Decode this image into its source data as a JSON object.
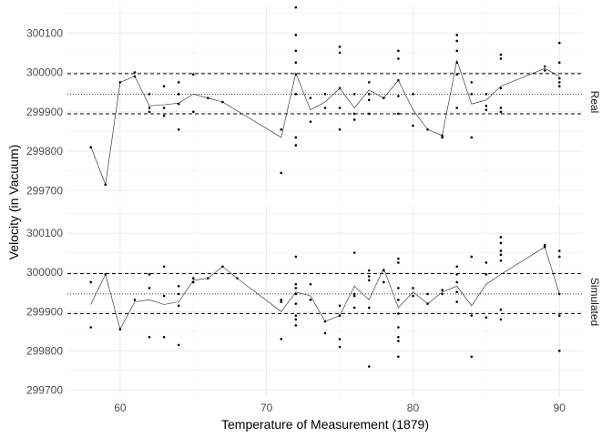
{
  "chart_data": {
    "type": "scatter",
    "xlabel": "Temperature of Measurement (1879)",
    "ylabel": "Velocity (in Vacuum)",
    "xlim": [
      56.4,
      91.6
    ],
    "ylim": [
      299680,
      300170
    ],
    "x_ticks": [
      60,
      70,
      80,
      90
    ],
    "y_ticks": [
      299700,
      299800,
      299900,
      300000,
      300100
    ],
    "grid": true,
    "reference_lines": {
      "dashed": [
        299895,
        299997
      ],
      "dotted": 299945
    },
    "panels": [
      {
        "name": "Real",
        "points": [
          {
            "x": 58,
            "y": 299810
          },
          {
            "x": 59,
            "y": 299715
          },
          {
            "x": 60,
            "y": 299975
          },
          {
            "x": 61,
            "y": 300000
          },
          {
            "x": 61,
            "y": 299990
          },
          {
            "x": 62,
            "y": 299945
          },
          {
            "x": 62,
            "y": 299900
          },
          {
            "x": 62,
            "y": 299910
          },
          {
            "x": 63,
            "y": 299965
          },
          {
            "x": 63,
            "y": 299910
          },
          {
            "x": 63,
            "y": 299890
          },
          {
            "x": 64,
            "y": 299975
          },
          {
            "x": 64,
            "y": 299945
          },
          {
            "x": 64,
            "y": 299920
          },
          {
            "x": 64,
            "y": 299855
          },
          {
            "x": 65,
            "y": 299995
          },
          {
            "x": 65,
            "y": 299900
          },
          {
            "x": 66,
            "y": 299935
          },
          {
            "x": 67,
            "y": 299925
          },
          {
            "x": 71,
            "y": 299855
          },
          {
            "x": 71,
            "y": 299745
          },
          {
            "x": 72,
            "y": 300165
          },
          {
            "x": 72,
            "y": 300095
          },
          {
            "x": 72,
            "y": 300055
          },
          {
            "x": 72,
            "y": 300025
          },
          {
            "x": 72,
            "y": 299995
          },
          {
            "x": 72,
            "y": 299945
          },
          {
            "x": 72,
            "y": 299835
          },
          {
            "x": 72,
            "y": 299815
          },
          {
            "x": 73,
            "y": 299935
          },
          {
            "x": 73,
            "y": 299875
          },
          {
            "x": 74,
            "y": 299945
          },
          {
            "x": 74,
            "y": 299910
          },
          {
            "x": 75,
            "y": 300065
          },
          {
            "x": 75,
            "y": 300050
          },
          {
            "x": 75,
            "y": 299960
          },
          {
            "x": 75,
            "y": 299910
          },
          {
            "x": 75,
            "y": 299855
          },
          {
            "x": 76,
            "y": 299945
          },
          {
            "x": 76,
            "y": 299895
          },
          {
            "x": 76,
            "y": 299880
          },
          {
            "x": 77,
            "y": 299975
          },
          {
            "x": 77,
            "y": 299945
          },
          {
            "x": 77,
            "y": 299930
          },
          {
            "x": 77,
            "y": 299895
          },
          {
            "x": 78,
            "y": 299935
          },
          {
            "x": 79,
            "y": 300055
          },
          {
            "x": 79,
            "y": 300035
          },
          {
            "x": 79,
            "y": 299980
          },
          {
            "x": 79,
            "y": 299940
          },
          {
            "x": 79,
            "y": 299895
          },
          {
            "x": 80,
            "y": 299945
          },
          {
            "x": 80,
            "y": 299865
          },
          {
            "x": 81,
            "y": 299855
          },
          {
            "x": 82,
            "y": 299840
          },
          {
            "x": 82,
            "y": 299835
          },
          {
            "x": 83,
            "y": 300095
          },
          {
            "x": 83,
            "y": 300080
          },
          {
            "x": 83,
            "y": 300055
          },
          {
            "x": 83,
            "y": 300025
          },
          {
            "x": 83,
            "y": 299995
          },
          {
            "x": 83,
            "y": 299910
          },
          {
            "x": 84,
            "y": 299975
          },
          {
            "x": 84,
            "y": 299945
          },
          {
            "x": 84,
            "y": 299835
          },
          {
            "x": 85,
            "y": 299945
          },
          {
            "x": 85,
            "y": 299915
          },
          {
            "x": 85,
            "y": 299905
          },
          {
            "x": 86,
            "y": 300045
          },
          {
            "x": 86,
            "y": 300035
          },
          {
            "x": 86,
            "y": 299960
          },
          {
            "x": 86,
            "y": 299910
          },
          {
            "x": 86,
            "y": 299900
          },
          {
            "x": 89,
            "y": 300015
          },
          {
            "x": 89,
            "y": 300005
          },
          {
            "x": 90,
            "y": 300075
          },
          {
            "x": 90,
            "y": 300025
          },
          {
            "x": 90,
            "y": 299985
          },
          {
            "x": 90,
            "y": 299975
          },
          {
            "x": 90,
            "y": 299965
          }
        ],
        "line": [
          {
            "x": 58,
            "y": 299812
          },
          {
            "x": 59,
            "y": 299715
          },
          {
            "x": 60,
            "y": 299975
          },
          {
            "x": 61,
            "y": 299990
          },
          {
            "x": 62,
            "y": 299915
          },
          {
            "x": 63,
            "y": 299918
          },
          {
            "x": 64,
            "y": 299922
          },
          {
            "x": 65,
            "y": 299945
          },
          {
            "x": 66,
            "y": 299935
          },
          {
            "x": 67,
            "y": 299925
          },
          {
            "x": 71,
            "y": 299835
          },
          {
            "x": 72,
            "y": 299998
          },
          {
            "x": 73,
            "y": 299905
          },
          {
            "x": 74,
            "y": 299925
          },
          {
            "x": 75,
            "y": 299960
          },
          {
            "x": 76,
            "y": 299910
          },
          {
            "x": 77,
            "y": 299955
          },
          {
            "x": 78,
            "y": 299935
          },
          {
            "x": 79,
            "y": 299980
          },
          {
            "x": 80,
            "y": 299905
          },
          {
            "x": 81,
            "y": 299855
          },
          {
            "x": 82,
            "y": 299840
          },
          {
            "x": 83,
            "y": 300030
          },
          {
            "x": 84,
            "y": 299920
          },
          {
            "x": 85,
            "y": 299930
          },
          {
            "x": 86,
            "y": 299965
          },
          {
            "x": 89,
            "y": 300010
          },
          {
            "x": 90,
            "y": 299990
          }
        ]
      },
      {
        "name": "Simulated",
        "points": [
          {
            "x": 58,
            "y": 299975
          },
          {
            "x": 58,
            "y": 299860
          },
          {
            "x": 59,
            "y": 299995
          },
          {
            "x": 60,
            "y": 299855
          },
          {
            "x": 61,
            "y": 299930
          },
          {
            "x": 62,
            "y": 299995
          },
          {
            "x": 62,
            "y": 299960
          },
          {
            "x": 62,
            "y": 299835
          },
          {
            "x": 63,
            "y": 300015
          },
          {
            "x": 63,
            "y": 299940
          },
          {
            "x": 63,
            "y": 299835
          },
          {
            "x": 64,
            "y": 299965
          },
          {
            "x": 64,
            "y": 299945
          },
          {
            "x": 64,
            "y": 299915
          },
          {
            "x": 64,
            "y": 299815
          },
          {
            "x": 65,
            "y": 299985
          },
          {
            "x": 65,
            "y": 299975
          },
          {
            "x": 66,
            "y": 299985
          },
          {
            "x": 67,
            "y": 300015
          },
          {
            "x": 68,
            "y": 299985
          },
          {
            "x": 71,
            "y": 299930
          },
          {
            "x": 71,
            "y": 299925
          },
          {
            "x": 71,
            "y": 299830
          },
          {
            "x": 72,
            "y": 300040
          },
          {
            "x": 72,
            "y": 299970
          },
          {
            "x": 72,
            "y": 299960
          },
          {
            "x": 72,
            "y": 299945
          },
          {
            "x": 72,
            "y": 299920
          },
          {
            "x": 72,
            "y": 299890
          },
          {
            "x": 72,
            "y": 299880
          },
          {
            "x": 72,
            "y": 299865
          },
          {
            "x": 73,
            "y": 299970
          },
          {
            "x": 73,
            "y": 299930
          },
          {
            "x": 74,
            "y": 299875
          },
          {
            "x": 74,
            "y": 299845
          },
          {
            "x": 75,
            "y": 299915
          },
          {
            "x": 75,
            "y": 299890
          },
          {
            "x": 75,
            "y": 299830
          },
          {
            "x": 75,
            "y": 299810
          },
          {
            "x": 76,
            "y": 300050
          },
          {
            "x": 76,
            "y": 299945
          },
          {
            "x": 76,
            "y": 299940
          },
          {
            "x": 76,
            "y": 299910
          },
          {
            "x": 77,
            "y": 300005
          },
          {
            "x": 77,
            "y": 299990
          },
          {
            "x": 77,
            "y": 299980
          },
          {
            "x": 77,
            "y": 299910
          },
          {
            "x": 77,
            "y": 299760
          },
          {
            "x": 78,
            "y": 300005
          },
          {
            "x": 78,
            "y": 299975
          },
          {
            "x": 79,
            "y": 300035
          },
          {
            "x": 79,
            "y": 300025
          },
          {
            "x": 79,
            "y": 299960
          },
          {
            "x": 79,
            "y": 299930
          },
          {
            "x": 79,
            "y": 299895
          },
          {
            "x": 79,
            "y": 299860
          },
          {
            "x": 79,
            "y": 299835
          },
          {
            "x": 79,
            "y": 299825
          },
          {
            "x": 79,
            "y": 299785
          },
          {
            "x": 80,
            "y": 299960
          },
          {
            "x": 80,
            "y": 299940
          },
          {
            "x": 81,
            "y": 299945
          },
          {
            "x": 81,
            "y": 299920
          },
          {
            "x": 82,
            "y": 299955
          },
          {
            "x": 82,
            "y": 299945
          },
          {
            "x": 83,
            "y": 300015
          },
          {
            "x": 83,
            "y": 299995
          },
          {
            "x": 83,
            "y": 299975
          },
          {
            "x": 83,
            "y": 299950
          },
          {
            "x": 83,
            "y": 299925
          },
          {
            "x": 84,
            "y": 300040
          },
          {
            "x": 84,
            "y": 299890
          },
          {
            "x": 84,
            "y": 299785
          },
          {
            "x": 85,
            "y": 300025
          },
          {
            "x": 85,
            "y": 299995
          },
          {
            "x": 85,
            "y": 299885
          },
          {
            "x": 86,
            "y": 300090
          },
          {
            "x": 86,
            "y": 300075
          },
          {
            "x": 86,
            "y": 300055
          },
          {
            "x": 86,
            "y": 300045
          },
          {
            "x": 86,
            "y": 300030
          },
          {
            "x": 86,
            "y": 299905
          },
          {
            "x": 86,
            "y": 299880
          },
          {
            "x": 89,
            "y": 300070
          },
          {
            "x": 89,
            "y": 300065
          },
          {
            "x": 90,
            "y": 300055
          },
          {
            "x": 90,
            "y": 300040
          },
          {
            "x": 90,
            "y": 299945
          },
          {
            "x": 90,
            "y": 299890
          },
          {
            "x": 90,
            "y": 299800
          }
        ],
        "line": [
          {
            "x": 58,
            "y": 299918
          },
          {
            "x": 59,
            "y": 299995
          },
          {
            "x": 60,
            "y": 299855
          },
          {
            "x": 61,
            "y": 299925
          },
          {
            "x": 62,
            "y": 299930
          },
          {
            "x": 63,
            "y": 299918
          },
          {
            "x": 64,
            "y": 299925
          },
          {
            "x": 65,
            "y": 299980
          },
          {
            "x": 66,
            "y": 299985
          },
          {
            "x": 67,
            "y": 300015
          },
          {
            "x": 68,
            "y": 299985
          },
          {
            "x": 71,
            "y": 299900
          },
          {
            "x": 72,
            "y": 299950
          },
          {
            "x": 73,
            "y": 299940
          },
          {
            "x": 74,
            "y": 299875
          },
          {
            "x": 75,
            "y": 299890
          },
          {
            "x": 76,
            "y": 299965
          },
          {
            "x": 77,
            "y": 299930
          },
          {
            "x": 78,
            "y": 300010
          },
          {
            "x": 79,
            "y": 299910
          },
          {
            "x": 80,
            "y": 299950
          },
          {
            "x": 81,
            "y": 299920
          },
          {
            "x": 82,
            "y": 299950
          },
          {
            "x": 83,
            "y": 299965
          },
          {
            "x": 84,
            "y": 299915
          },
          {
            "x": 85,
            "y": 299970
          },
          {
            "x": 86,
            "y": 299995
          },
          {
            "x": 89,
            "y": 300065
          },
          {
            "x": 90,
            "y": 299945
          }
        ]
      }
    ]
  }
}
